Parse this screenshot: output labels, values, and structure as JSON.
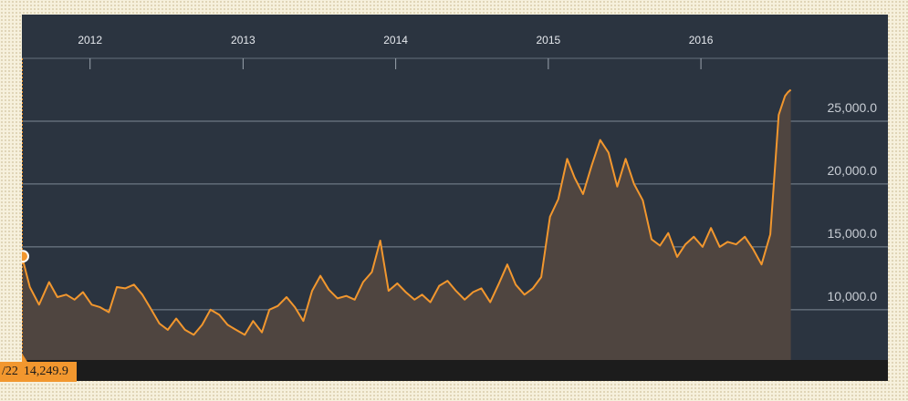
{
  "chart_data": {
    "type": "area",
    "title": "",
    "xlabel": "",
    "ylabel": "",
    "x_ticks": [
      "2012",
      "2013",
      "2014",
      "2015",
      "2016"
    ],
    "y_ticks": [
      "25,000.0",
      "20,000.0",
      "15,000.0",
      "10,000.0"
    ],
    "ylim": [
      6000,
      30000
    ],
    "xlim": [
      "2011-07-22",
      "2016-09-10"
    ],
    "grid": "horizontal",
    "colors": {
      "line": "#f2972e",
      "area": "#4f4540",
      "background": "#2b3440",
      "gridline": "#7d8894"
    },
    "series": [
      {
        "x": [
          "2011-07-22",
          "2011-08-10",
          "2011-09-01",
          "2011-09-25",
          "2011-10-15",
          "2011-11-05",
          "2011-11-25",
          "2011-12-15",
          "2012-01-05",
          "2012-01-25",
          "2012-02-15",
          "2012-03-05",
          "2012-03-25",
          "2012-04-15",
          "2012-05-05",
          "2012-05-25",
          "2012-06-15",
          "2012-07-05",
          "2012-07-25",
          "2012-08-15",
          "2012-09-05",
          "2012-09-25",
          "2012-10-15",
          "2012-11-05",
          "2012-11-25",
          "2012-12-15",
          "2013-01-05",
          "2013-01-25",
          "2013-02-15",
          "2013-03-05",
          "2013-03-25",
          "2013-04-15",
          "2013-05-05",
          "2013-05-25",
          "2013-06-15",
          "2013-07-05",
          "2013-07-25",
          "2013-08-15",
          "2013-09-05",
          "2013-09-25",
          "2013-10-15",
          "2013-11-05",
          "2013-11-25",
          "2013-12-15",
          "2014-01-05",
          "2014-01-25",
          "2014-02-15",
          "2014-03-05",
          "2014-03-25",
          "2014-04-15",
          "2014-05-05",
          "2014-05-25",
          "2014-06-15",
          "2014-07-05",
          "2014-07-25",
          "2014-08-15",
          "2014-09-05",
          "2014-09-25",
          "2014-10-15",
          "2014-11-05",
          "2014-11-25",
          "2014-12-15",
          "2015-01-05",
          "2015-01-25",
          "2015-02-15",
          "2015-03-05",
          "2015-03-25",
          "2015-04-15",
          "2015-05-05",
          "2015-05-25",
          "2015-06-15",
          "2015-07-05",
          "2015-07-25",
          "2015-08-15",
          "2015-09-05",
          "2015-09-25",
          "2015-10-15",
          "2015-11-05",
          "2015-11-25",
          "2015-12-15",
          "2016-01-05",
          "2016-01-25",
          "2016-02-15",
          "2016-03-05",
          "2016-03-25",
          "2016-04-15",
          "2016-05-05",
          "2016-05-25",
          "2016-06-15",
          "2016-07-05",
          "2016-07-20",
          "2016-07-27",
          "2016-08-03"
        ],
        "values": [
          14249.9,
          11800,
          10400,
          12200,
          11000,
          11200,
          10800,
          11400,
          10400,
          10200,
          9800,
          11800,
          11700,
          12000,
          11200,
          10100,
          8900,
          8400,
          9300,
          8400,
          8000,
          8800,
          10000,
          9600,
          8800,
          8400,
          8000,
          9100,
          8200,
          10000,
          10300,
          11000,
          10200,
          9100,
          11500,
          12700,
          11600,
          10900,
          11100,
          10800,
          12200,
          13000,
          15500,
          11500,
          12100,
          11400,
          10800,
          11200,
          10600,
          11900,
          12300,
          11500,
          10800,
          11400,
          11700,
          10600,
          12100,
          13600,
          12000,
          11200,
          11700,
          12600,
          17400,
          18800,
          22000,
          20500,
          19200,
          21500,
          23500,
          22500,
          19800,
          22000,
          20000,
          18700,
          15600,
          15100,
          16100,
          14200,
          15200,
          15800,
          15000,
          16500,
          15000,
          15400,
          15200,
          15800,
          14800,
          13600,
          16000,
          25500,
          27000,
          27300,
          27500
        ]
      }
    ],
    "tooltip": {
      "date_label": "/22",
      "value_label": "14,249.9"
    }
  }
}
